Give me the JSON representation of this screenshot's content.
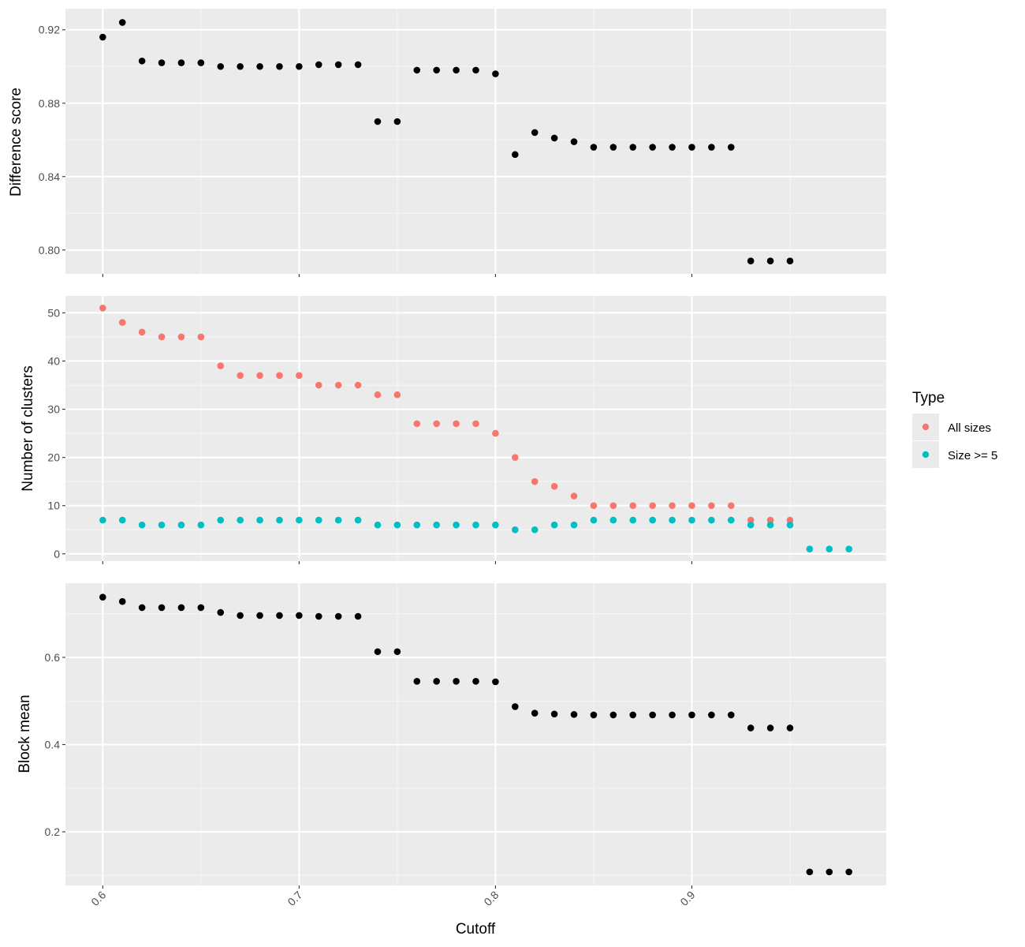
{
  "chart_data": [
    {
      "type": "scatter",
      "ylabel": "Difference score",
      "ylim": [
        0.787,
        0.9315
      ],
      "yticks": [
        0.8,
        0.84,
        0.88,
        0.92
      ],
      "ytick_labels": [
        "0.80",
        "0.84",
        "0.88",
        "0.92"
      ],
      "series": [
        {
          "color": "#000000",
          "x": [
            0.6,
            0.61,
            0.62,
            0.63,
            0.64,
            0.65,
            0.66,
            0.67,
            0.68,
            0.69,
            0.7,
            0.71,
            0.72,
            0.73,
            0.74,
            0.75,
            0.76,
            0.77,
            0.78,
            0.79,
            0.8,
            0.81,
            0.82,
            0.83,
            0.84,
            0.85,
            0.86,
            0.87,
            0.88,
            0.89,
            0.9,
            0.91,
            0.92,
            0.93,
            0.94,
            0.95
          ],
          "values": [
            0.916,
            0.924,
            0.903,
            0.902,
            0.902,
            0.902,
            0.9,
            0.9,
            0.9,
            0.9,
            0.9,
            0.901,
            0.901,
            0.901,
            0.87,
            0.87,
            0.898,
            0.898,
            0.898,
            0.898,
            0.896,
            0.852,
            0.864,
            0.861,
            0.859,
            0.856,
            0.856,
            0.856,
            0.856,
            0.856,
            0.856,
            0.856,
            0.856,
            0.794,
            0.794,
            0.794
          ]
        }
      ]
    },
    {
      "type": "scatter",
      "ylabel": "Number of clusters",
      "ylim": [
        -1.5,
        53.5
      ],
      "yticks": [
        0,
        10,
        20,
        30,
        40,
        50
      ],
      "ytick_labels": [
        "0",
        "10",
        "20",
        "30",
        "40",
        "50"
      ],
      "legend": {
        "title": "Type",
        "position": "right"
      },
      "series": [
        {
          "name": "All sizes",
          "color": "#f8766d",
          "x": [
            0.6,
            0.61,
            0.62,
            0.63,
            0.64,
            0.65,
            0.66,
            0.67,
            0.68,
            0.69,
            0.7,
            0.71,
            0.72,
            0.73,
            0.74,
            0.75,
            0.76,
            0.77,
            0.78,
            0.79,
            0.8,
            0.81,
            0.82,
            0.83,
            0.84,
            0.85,
            0.86,
            0.87,
            0.88,
            0.89,
            0.9,
            0.91,
            0.92,
            0.93,
            0.94,
            0.95
          ],
          "values": [
            51,
            48,
            46,
            45,
            45,
            45,
            39,
            37,
            37,
            37,
            37,
            35,
            35,
            35,
            33,
            33,
            27,
            27,
            27,
            27,
            25,
            20,
            15,
            14,
            12,
            10,
            10,
            10,
            10,
            10,
            10,
            10,
            10,
            7,
            7,
            7
          ]
        },
        {
          "name": "Size >= 5",
          "color": "#00bfc4",
          "x": [
            0.6,
            0.61,
            0.62,
            0.63,
            0.64,
            0.65,
            0.66,
            0.67,
            0.68,
            0.69,
            0.7,
            0.71,
            0.72,
            0.73,
            0.74,
            0.75,
            0.76,
            0.77,
            0.78,
            0.79,
            0.8,
            0.81,
            0.82,
            0.83,
            0.84,
            0.85,
            0.86,
            0.87,
            0.88,
            0.89,
            0.9,
            0.91,
            0.92,
            0.93,
            0.94,
            0.95,
            0.96,
            0.97,
            0.98
          ],
          "values": [
            7,
            7,
            6,
            6,
            6,
            6,
            7,
            7,
            7,
            7,
            7,
            7,
            7,
            7,
            6,
            6,
            6,
            6,
            6,
            6,
            6,
            5,
            5,
            6,
            6,
            7,
            7,
            7,
            7,
            7,
            7,
            7,
            7,
            6,
            6,
            6,
            1,
            1,
            1
          ]
        }
      ]
    },
    {
      "type": "scatter",
      "ylabel": "Block mean",
      "ylim": [
        0.077,
        0.77
      ],
      "yticks": [
        0.2,
        0.4,
        0.6
      ],
      "ytick_labels": [
        "0.2",
        "0.4",
        "0.6"
      ],
      "series": [
        {
          "color": "#000000",
          "x": [
            0.6,
            0.61,
            0.62,
            0.63,
            0.64,
            0.65,
            0.66,
            0.67,
            0.68,
            0.69,
            0.7,
            0.71,
            0.72,
            0.73,
            0.74,
            0.75,
            0.76,
            0.77,
            0.78,
            0.79,
            0.8,
            0.81,
            0.82,
            0.83,
            0.84,
            0.85,
            0.86,
            0.87,
            0.88,
            0.89,
            0.9,
            0.91,
            0.92,
            0.93,
            0.94,
            0.95,
            0.96,
            0.97,
            0.98
          ],
          "values": [
            0.738,
            0.728,
            0.714,
            0.714,
            0.714,
            0.714,
            0.703,
            0.696,
            0.696,
            0.696,
            0.696,
            0.694,
            0.694,
            0.694,
            0.613,
            0.613,
            0.545,
            0.545,
            0.545,
            0.545,
            0.544,
            0.487,
            0.472,
            0.47,
            0.469,
            0.468,
            0.468,
            0.468,
            0.468,
            0.468,
            0.468,
            0.468,
            0.468,
            0.438,
            0.438,
            0.438,
            0.108,
            0.108,
            0.108
          ]
        }
      ]
    }
  ],
  "x_axis": {
    "label": "Cutoff",
    "xlim": [
      0.581,
      0.999
    ],
    "ticks": [
      0.6,
      0.7,
      0.8,
      0.9
    ],
    "tick_labels": [
      "0.6",
      "0.7",
      "0.8",
      "0.9"
    ]
  },
  "colors": {
    "panel_background": "#ebebeb",
    "grid_major": "#ffffff",
    "grid_minor": "#f5f5f5",
    "tick": "#333333"
  }
}
